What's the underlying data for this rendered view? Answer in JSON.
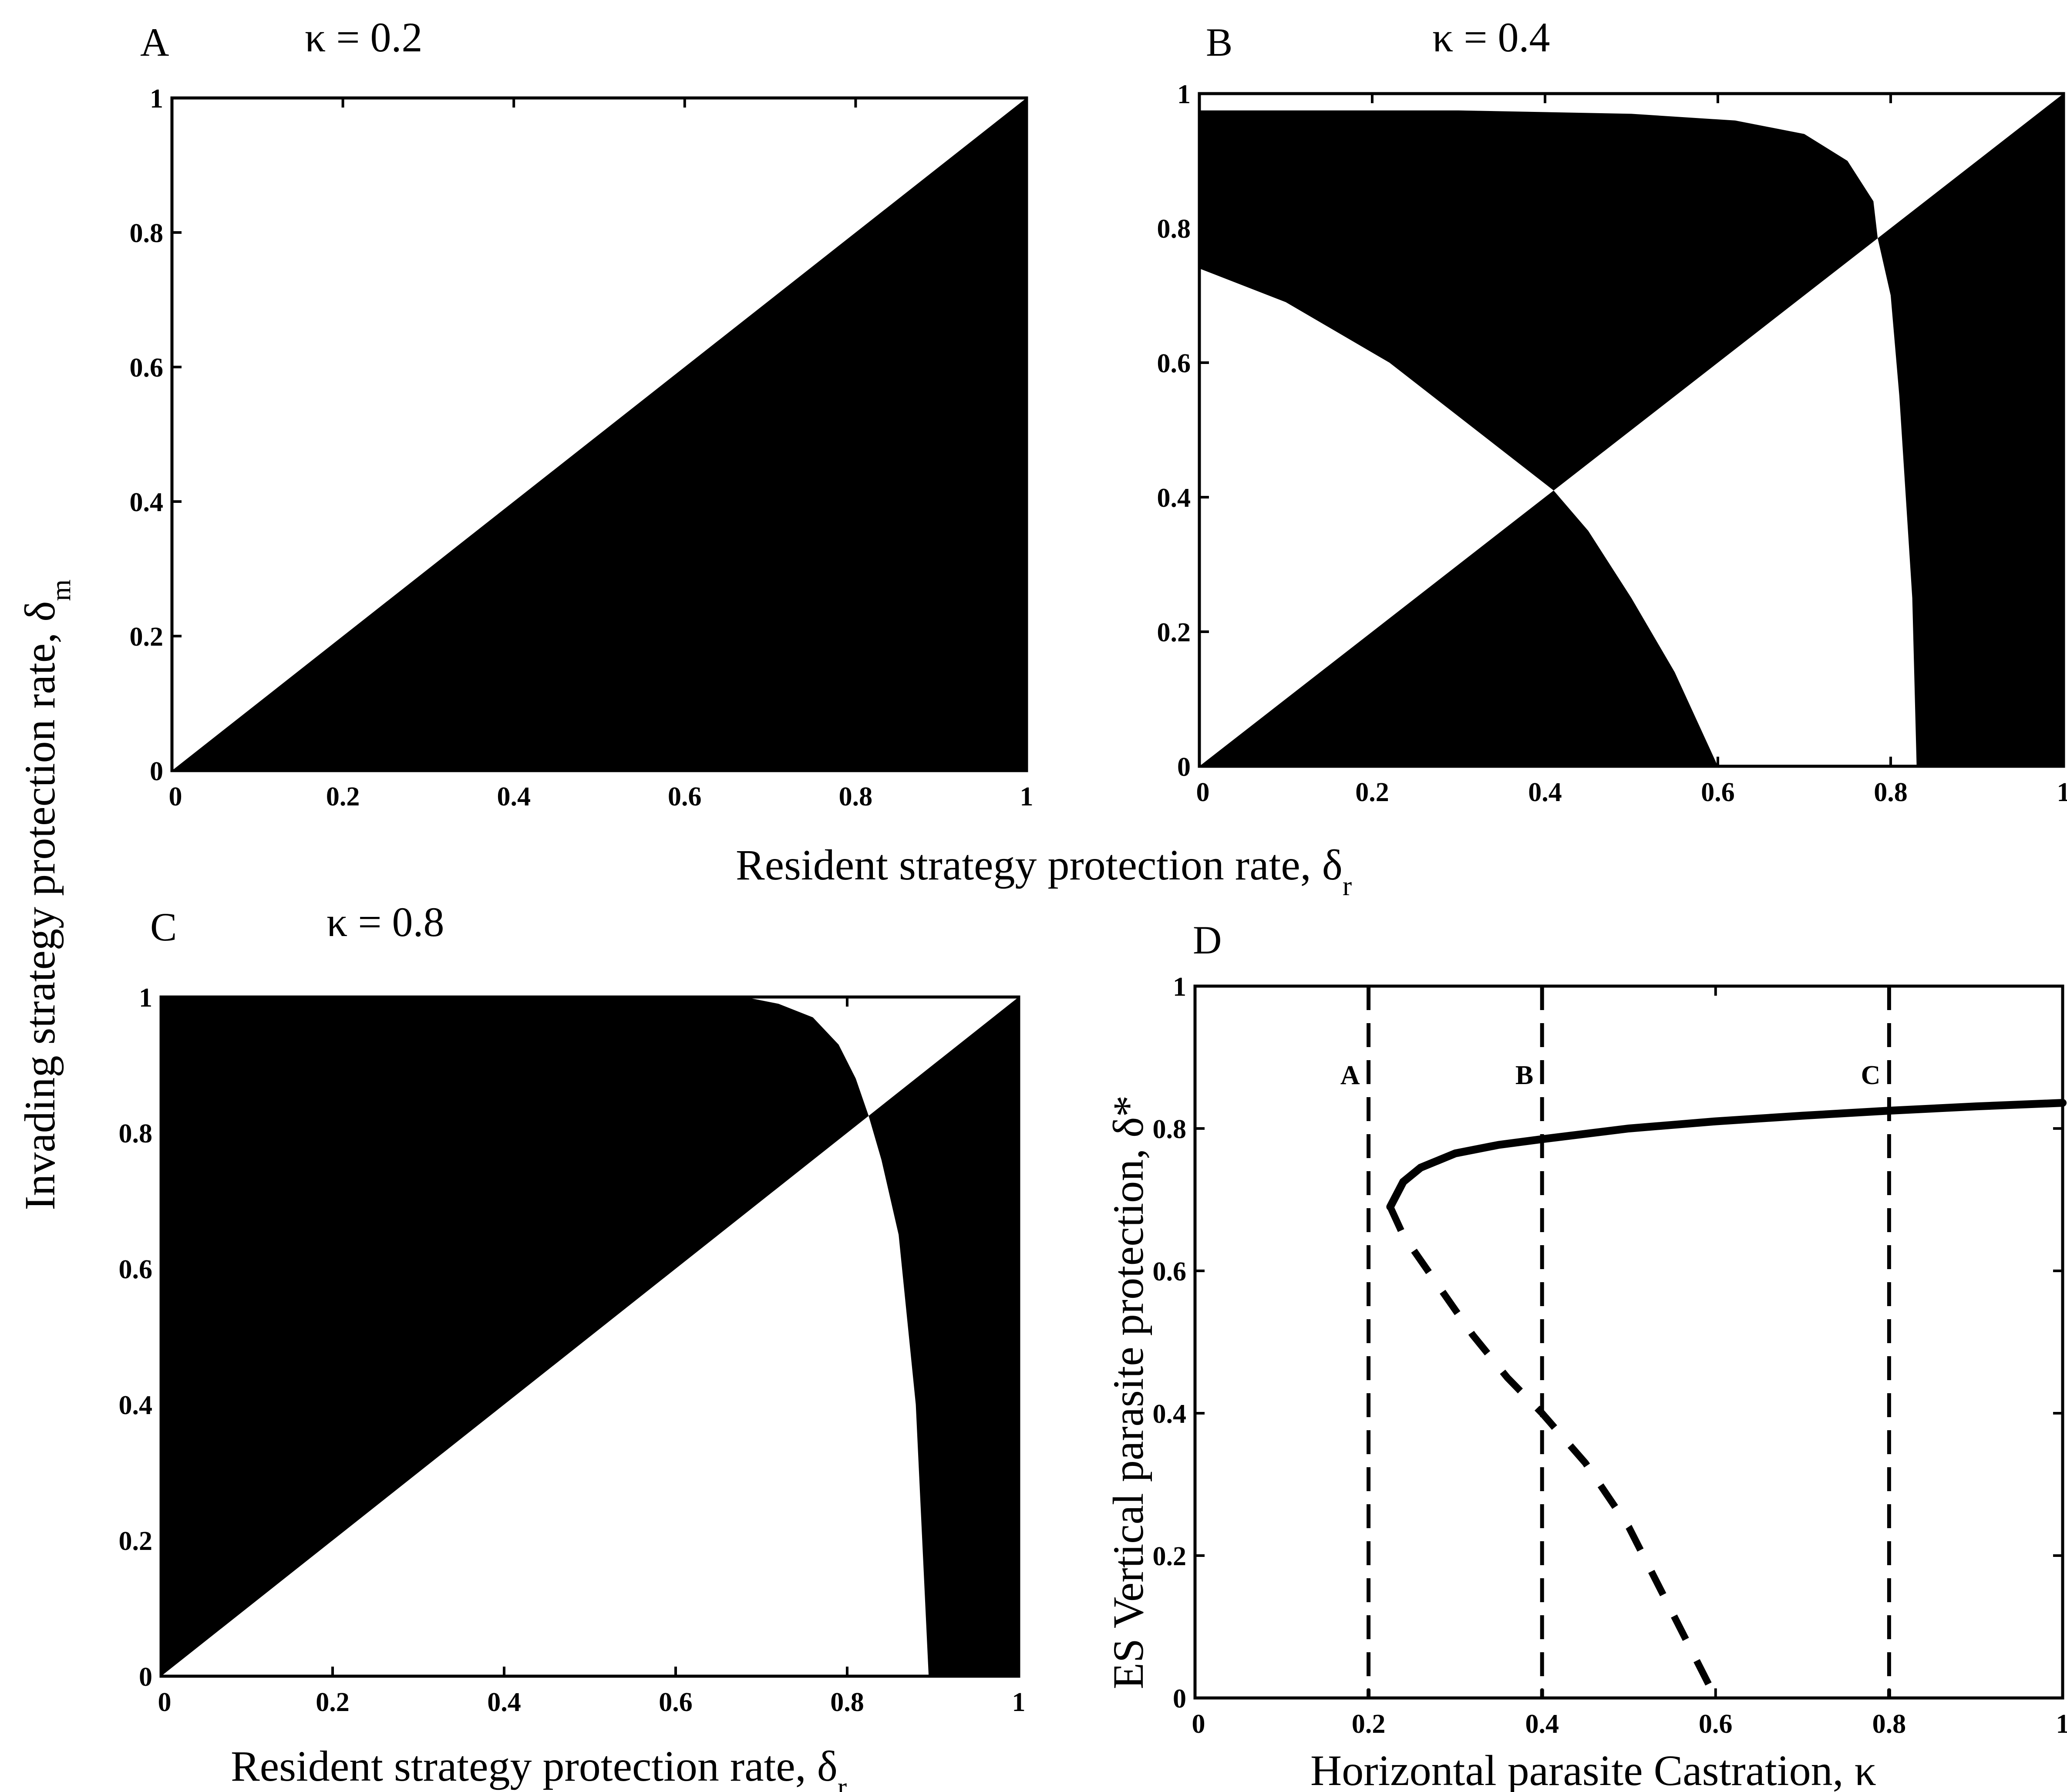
{
  "figure": {
    "shared_xlabel_top": "Resident strategy protection rate, δ",
    "shared_xlabel_top_sub": "r",
    "shared_ylabel": "Invading strategy protection rate, δ",
    "shared_ylabel_sub": "m"
  },
  "chart_data": [
    {
      "panel": "A",
      "type": "heatmap",
      "title": "κ = 0.2",
      "xlabel": "",
      "ylabel": "",
      "xlim": [
        0,
        1
      ],
      "ylim": [
        0,
        1
      ],
      "xticks": [
        "0",
        "0.2",
        "0.4",
        "0.6",
        "0.8",
        "1"
      ],
      "yticks": [
        "0",
        "0.2",
        "0.4",
        "0.6",
        "0.8",
        "1"
      ],
      "regions_black": [
        {
          "description": "below diagonal",
          "polygon": [
            [
              0,
              0
            ],
            [
              1,
              1
            ],
            [
              1,
              0
            ]
          ]
        }
      ]
    },
    {
      "panel": "B",
      "type": "heatmap",
      "title": "κ = 0.4",
      "xlabel": "",
      "ylabel": "",
      "xlim": [
        0,
        1
      ],
      "ylim": [
        0,
        1
      ],
      "xticks": [
        "0",
        "0.2",
        "0.4",
        "0.6",
        "0.8",
        "1"
      ],
      "yticks": [
        "0",
        "0.2",
        "0.4",
        "0.6",
        "0.8",
        "1"
      ],
      "regions_black": [
        {
          "polygon": [
            [
              0,
              0.975
            ],
            [
              0.3,
              0.975
            ],
            [
              0.5,
              0.97
            ],
            [
              0.62,
              0.96
            ],
            [
              0.7,
              0.94
            ],
            [
              0.75,
              0.9
            ],
            [
              0.78,
              0.84
            ],
            [
              0.785,
              0.785
            ],
            [
              0.41,
              0.41
            ],
            [
              0.33,
              0.49
            ],
            [
              0.22,
              0.6
            ],
            [
              0.1,
              0.69
            ],
            [
              0,
              0.74
            ]
          ]
        },
        {
          "polygon": [
            [
              0,
              0
            ],
            [
              0.41,
              0.41
            ],
            [
              0.45,
              0.35
            ],
            [
              0.5,
              0.25
            ],
            [
              0.55,
              0.14
            ],
            [
              0.6,
              0
            ]
          ]
        },
        {
          "polygon": [
            [
              0.785,
              0.785
            ],
            [
              1,
              1
            ],
            [
              1,
              0
            ],
            [
              0.83,
              0
            ],
            [
              0.825,
              0.25
            ],
            [
              0.81,
              0.55
            ],
            [
              0.8,
              0.7
            ]
          ]
        }
      ]
    },
    {
      "panel": "C",
      "type": "heatmap",
      "title": "κ = 0.8",
      "xlabel": "Resident strategy protection rate, δ",
      "xlabel_sub": "r",
      "ylabel": "",
      "xlim": [
        0,
        1
      ],
      "ylim": [
        0,
        1
      ],
      "xticks": [
        "0",
        "0.2",
        "0.4",
        "0.6",
        "0.8",
        "1"
      ],
      "yticks": [
        "0",
        "0.2",
        "0.4",
        "0.6",
        "0.8",
        "1"
      ],
      "regions_black": [
        {
          "polygon": [
            [
              0,
              0
            ],
            [
              0,
              1
            ],
            [
              0.68,
              1
            ],
            [
              0.72,
              0.99
            ],
            [
              0.76,
              0.97
            ],
            [
              0.79,
              0.93
            ],
            [
              0.81,
              0.88
            ],
            [
              0.825,
              0.825
            ]
          ]
        },
        {
          "polygon": [
            [
              0.825,
              0.825
            ],
            [
              1,
              1
            ],
            [
              1,
              0
            ],
            [
              0.895,
              0
            ],
            [
              0.88,
              0.4
            ],
            [
              0.86,
              0.65
            ],
            [
              0.84,
              0.76
            ]
          ]
        }
      ]
    },
    {
      "panel": "D",
      "type": "line",
      "title": "",
      "xlabel": "Horizontal parasite Castration, κ",
      "ylabel": "ES Vertical parasite protection, δ*",
      "xlim": [
        0,
        1
      ],
      "ylim": [
        0,
        1
      ],
      "xticks": [
        "0",
        "0.2",
        "0.4",
        "0.6",
        "0.8",
        "1"
      ],
      "yticks": [
        "0",
        "0.2",
        "0.4",
        "0.6",
        "0.8",
        "1"
      ],
      "series": [
        {
          "style": "solid",
          "x": [
            0.225,
            0.24,
            0.26,
            0.3,
            0.35,
            0.4,
            0.5,
            0.6,
            0.7,
            0.8,
            0.9,
            1.0
          ],
          "y": [
            0.69,
            0.725,
            0.745,
            0.765,
            0.777,
            0.785,
            0.8,
            0.81,
            0.818,
            0.825,
            0.831,
            0.836
          ]
        },
        {
          "style": "dashed",
          "x": [
            0.225,
            0.24,
            0.28,
            0.32,
            0.36,
            0.4,
            0.45,
            0.5,
            0.55,
            0.6
          ],
          "y": [
            0.69,
            0.65,
            0.58,
            0.51,
            0.45,
            0.4,
            0.33,
            0.24,
            0.12,
            0.0
          ]
        }
      ],
      "vlines": [
        {
          "x": 0.2,
          "label": "A"
        },
        {
          "x": 0.4,
          "label": "B"
        },
        {
          "x": 0.8,
          "label": "C"
        }
      ]
    }
  ]
}
